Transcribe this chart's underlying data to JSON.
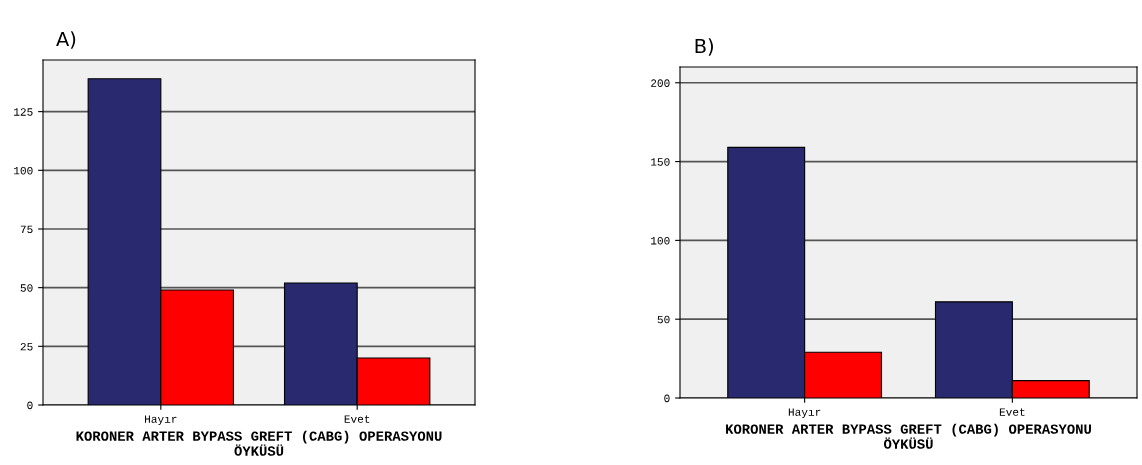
{
  "chart_data": [
    {
      "type": "bar",
      "title": "A)",
      "xlabel": "KORONER ARTER BYPASS GREFT (CABG) OPERASYONU ÖYKÜSÜ",
      "categories": [
        "Hayır",
        "Evet"
      ],
      "series": [
        {
          "color": "#29296f",
          "values": [
            139,
            52
          ]
        },
        {
          "color": "#ff0000",
          "values": [
            49,
            20
          ]
        }
      ],
      "ylim": [
        0,
        147
      ],
      "yticks": [
        0,
        25,
        50,
        75,
        100,
        125
      ],
      "grid": "y",
      "legend": false
    },
    {
      "type": "bar",
      "title": "B)",
      "xlabel": "KORONER ARTER BYPASS GREFT (CABG) OPERASYONU ÖYKÜSÜ",
      "categories": [
        "Hayır",
        "Evet"
      ],
      "series": [
        {
          "color": "#29296f",
          "values": [
            159,
            61
          ]
        },
        {
          "color": "#ff0000",
          "values": [
            29,
            11
          ]
        }
      ],
      "ylim": [
        0,
        210
      ],
      "yticks": [
        0,
        50,
        100,
        150,
        200
      ],
      "grid": "y",
      "legend": false
    }
  ]
}
